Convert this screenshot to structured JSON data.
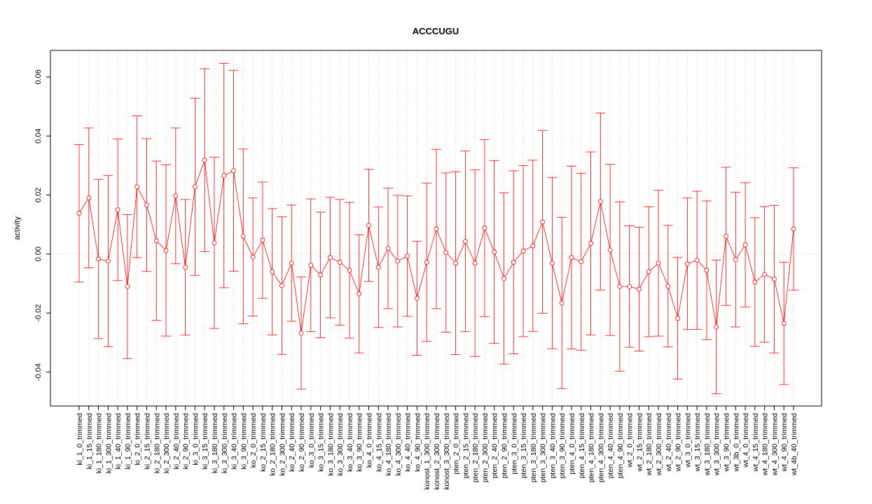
{
  "chart_data": {
    "type": "errorbar",
    "title": "ACCCUGU",
    "y_label": "activity",
    "categories": [
      "ki_1_0_trimmed",
      "ki_1_15_trimmed",
      "ki_1_180_trimmed",
      "ki_1_300_trimmed",
      "ki_1_40_trimmed",
      "ki_1_90_trimmed",
      "ki_2_0_trimmed",
      "ki_2_15_trimmed",
      "ki_2_180_trimmed",
      "ki_2_300_trimmed",
      "ki_2_40_trimmed",
      "ki_2_90_trimmed",
      "ki_3_0_trimmed",
      "ki_3_15_trimmed",
      "ki_3_180_trimmed",
      "ki_3_300_trimmed",
      "ki_3_40_trimmed",
      "ki_3_90_trimmed",
      "ko_2_0_trimmed",
      "ko_2_15_trimmed",
      "ko_2_180_trimmed",
      "ko_2_300_trimmed",
      "ko_2_40_trimmed",
      "ko_2_90_trimmed",
      "ko_3_0_trimmed",
      "ko_3_15_trimmed",
      "ko_3_180_trimmed",
      "ko_3_300_trimmed",
      "ko_3_40_trimmed",
      "ko_3_90_trimmed",
      "ko_4_0_trimmed",
      "ko_4_15_trimmed",
      "ko_4_180_trimmed",
      "ko_4_300_trimmed",
      "ko_4_40_trimmed",
      "ko_4_90_trimmed",
      "konost_1_300_trimmed",
      "konost_2_300_trimmed",
      "konost_3_300_trimmed",
      "pten_2_0_trimmed",
      "pten_2_15_trimmed",
      "pten_2_180_trimmed",
      "pten_2_300_trimmed",
      "pten_2_40_trimmed",
      "pten_2_90_trimmed",
      "pten_3_0_trimmed",
      "pten_3_15_trimmed",
      "pten_3_180_trimmed",
      "pten_3_300_trimmed",
      "pten_3_40_trimmed",
      "pten_3_90_trimmed",
      "pten_4_0_trimmed",
      "pten_4_15_trimmed",
      "pten_4_180_trimmed",
      "pten_4_300_trimmed",
      "pten_4_40_trimmed",
      "pten_4_90_trimmed",
      "wt_2_0_trimmed",
      "wt_2_15_trimmed",
      "wt_2_180_trimmed",
      "wt_2_300_trimmed",
      "wt_2_40_trimmed",
      "wt_2_90_trimmed",
      "wt_3_0_trimmed",
      "wt_3_15_trimmed",
      "wt_3_180_trimmed",
      "wt_3_300_trimmed",
      "wt_3_90_trimmed",
      "wt_3b_0_trimmed",
      "wt_4_0_trimmed",
      "wt_4_15_trimmed",
      "wt_4_180_trimmed",
      "wt_4_300_trimmed",
      "wt_4_90_trimmed",
      "wt_4b_40_trimmed"
    ],
    "values": [
      0.0138,
      0.019,
      -0.0017,
      -0.0024,
      0.015,
      -0.011,
      0.0228,
      0.0166,
      0.0045,
      0.0012,
      0.0197,
      -0.0045,
      0.0228,
      0.0318,
      0.0038,
      0.0266,
      0.0282,
      0.006,
      -0.001,
      0.0047,
      -0.006,
      -0.0107,
      -0.0031,
      -0.0268,
      -0.0038,
      -0.0071,
      -0.0012,
      -0.0028,
      -0.0055,
      -0.0135,
      0.0097,
      -0.0045,
      0.0019,
      -0.0024,
      -0.0007,
      -0.015,
      -0.0028,
      0.0085,
      0.0005,
      -0.0031,
      0.0043,
      -0.0031,
      0.0088,
      0.0007,
      -0.0083,
      -0.0028,
      0.001,
      0.0028,
      0.0109,
      -0.0031,
      -0.0166,
      -0.0012,
      -0.0026,
      0.0036,
      0.0178,
      0.0014,
      -0.011,
      -0.011,
      -0.0119,
      -0.006,
      -0.0031,
      -0.0109,
      -0.0218,
      -0.0033,
      -0.0021,
      -0.0055,
      -0.0247,
      0.006,
      -0.0019,
      0.0031,
      -0.0095,
      -0.0069,
      -0.0085,
      -0.0235,
      0.0085
    ],
    "errors": [
      0.0233,
      0.0237,
      0.027,
      0.029,
      0.024,
      0.0244,
      0.024,
      0.0225,
      0.027,
      0.029,
      0.023,
      0.023,
      0.03,
      0.031,
      0.029,
      0.038,
      0.034,
      0.0296,
      0.02,
      0.0197,
      0.0214,
      0.0233,
      0.0197,
      0.019,
      0.0225,
      0.0213,
      0.0204,
      0.0213,
      0.023,
      0.02,
      0.019,
      0.0204,
      0.0204,
      0.0223,
      0.0204,
      0.0193,
      0.0268,
      0.027,
      0.027,
      0.031,
      0.0306,
      0.0316,
      0.03,
      0.031,
      0.029,
      0.031,
      0.029,
      0.029,
      0.031,
      0.029,
      0.029,
      0.031,
      0.03,
      0.031,
      0.03,
      0.029,
      0.0287,
      0.0206,
      0.021,
      0.022,
      0.0247,
      0.0206,
      0.0206,
      0.0223,
      0.0234,
      0.0235,
      0.0226,
      0.0234,
      0.0228,
      0.0211,
      0.0218,
      0.023,
      0.025,
      0.0207,
      0.0207
    ],
    "color": "#ff0000",
    "ylim": [
      -0.0515,
      0.069
    ],
    "yticks": [
      -0.04,
      -0.02,
      {
        "value": 0,
        "label": "0.00"
      },
      0.02,
      0.04,
      0.06
    ],
    "reference_line": 0,
    "grid": true
  }
}
